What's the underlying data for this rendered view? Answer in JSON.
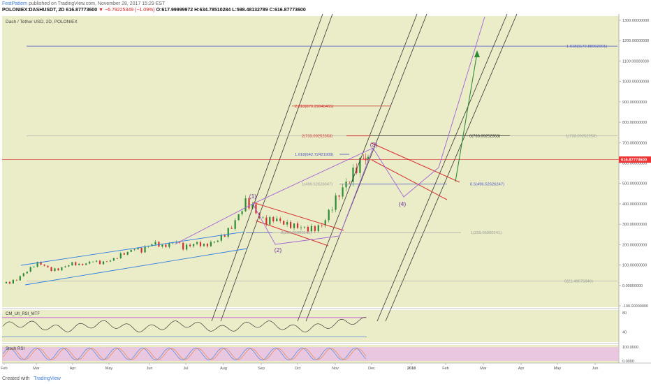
{
  "header": {
    "author": "FestPattern",
    "published_text": "published on TradingView.com, November 28, 2017 15:29 EST",
    "symbol": "POLONIEX:DASHUSDT, 2D",
    "last": "616.87773600",
    "change_text": "▼ −6.79225349 (−1.09%)",
    "o": "O:617.99999972",
    "h": "H:634.78510284",
    "l": "L:598.48132789",
    "c": "C:616.87773600"
  },
  "footer": {
    "created_with": "Created with",
    "brand": "TradingView"
  },
  "colors": {
    "bg": "#ebedc9",
    "up": "#2e8b35",
    "down": "#d03030",
    "fib_blue": "#4a54c8",
    "fib_red": "#d63030",
    "fib_gray": "#999999",
    "violet": "#a061d6",
    "trend_blue": "#2f7fe0",
    "arrow_green": "#2e8b35",
    "pitchfork": "#333333",
    "stoch_band": "#e8bde6"
  },
  "chart_data": [
    {
      "type": "candlestick",
      "title": "Dash / Tether USD, 2D, POLONIEX",
      "x_ticks": [
        "Feb",
        "Mar",
        "Apr",
        "May",
        "Jun",
        "Jul",
        "Aug",
        "Sep",
        "Oct",
        "Nov",
        "Dec",
        "2018",
        "Feb",
        "Mar",
        "Apr",
        "May",
        "Jun"
      ],
      "y_ticks": [
        "1300.00000000",
        "1200.00000000",
        "1100.00000000",
        "1000.00000000",
        "900.00000000",
        "800.00000000",
        "700.00000000",
        "600.00000000",
        "500.00000000",
        "400.00000000",
        "300.00000000",
        "200.00000000",
        "100.00000000",
        "0.00000000",
        "-100.00000000"
      ],
      "ylim": [
        -100,
        1300
      ],
      "price_label": "616.87773600",
      "wave_labels": [
        "(1)",
        "(2)",
        "(3)",
        "(4)"
      ],
      "fib_labels": [
        {
          "text": "1.618(1172.88962091)",
          "value": 1172.88962091
        },
        {
          "text": "2.618(879.29048465)",
          "value": 879.29048465
        },
        {
          "text": "2(733.09252353)",
          "value": 733.09252353
        },
        {
          "text": "0(733.09252353)",
          "value": 733.09252353
        },
        {
          "text": "1(733.09252353)",
          "value": 733.09252353
        },
        {
          "text": "1.618(642.72421909)",
          "value": 642.72421909
        },
        {
          "text": "1(496.52626047)",
          "value": 496.52626047
        },
        {
          "text": "0.5(496.52626247)",
          "value": 496.52626247
        },
        {
          "text": "0(259.06000141)",
          "value": 259.06000141
        },
        {
          "text": "1(259.06000141)",
          "value": 259.06000141
        },
        {
          "text": "0(21.49675846)",
          "value": 21.49675846
        }
      ],
      "series_close_approx": [
        [
          0,
          10
        ],
        [
          6,
          14
        ],
        [
          12,
          30
        ],
        [
          18,
          60
        ],
        [
          24,
          85
        ],
        [
          30,
          110
        ],
        [
          36,
          95
        ],
        [
          42,
          75
        ],
        [
          48,
          80
        ],
        [
          54,
          95
        ],
        [
          60,
          110
        ],
        [
          66,
          100
        ],
        [
          72,
          105
        ],
        [
          78,
          120
        ],
        [
          84,
          110
        ],
        [
          90,
          120
        ],
        [
          96,
          130
        ],
        [
          102,
          150
        ],
        [
          108,
          160
        ],
        [
          114,
          180
        ],
        [
          120,
          170
        ],
        [
          126,
          200
        ],
        [
          132,
          210
        ],
        [
          138,
          190
        ],
        [
          144,
          200
        ],
        [
          150,
          215
        ],
        [
          156,
          185
        ],
        [
          162,
          200
        ],
        [
          168,
          210
        ],
        [
          174,
          195
        ],
        [
          180,
          205
        ],
        [
          186,
          220
        ],
        [
          192,
          250
        ],
        [
          198,
          290
        ],
        [
          204,
          350
        ],
        [
          210,
          410
        ],
        [
          216,
          380
        ],
        [
          222,
          330
        ],
        [
          228,
          310
        ],
        [
          234,
          330
        ],
        [
          240,
          320
        ],
        [
          246,
          300
        ],
        [
          252,
          290
        ],
        [
          258,
          280
        ],
        [
          264,
          275
        ],
        [
          270,
          280
        ],
        [
          276,
          300
        ],
        [
          282,
          360
        ],
        [
          288,
          420
        ],
        [
          294,
          470
        ],
        [
          300,
          520
        ],
        [
          306,
          580
        ],
        [
          312,
          640
        ],
        [
          316,
          617
        ]
      ]
    },
    {
      "type": "line",
      "title": "CM_Ult_RSI_MTF",
      "ylim": [
        25,
        80
      ],
      "y_ticks": [
        "80",
        "40"
      ]
    },
    {
      "type": "line",
      "title": "Stoch RSI",
      "y_ticks": [
        "100.0000",
        "0.0000"
      ]
    }
  ]
}
